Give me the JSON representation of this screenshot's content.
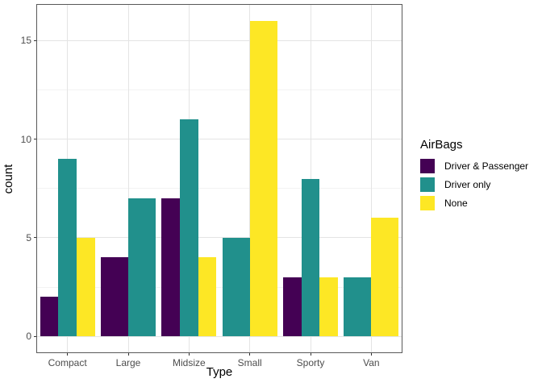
{
  "chart_data": {
    "type": "bar",
    "title": "",
    "xlabel": "Type",
    "ylabel": "count",
    "categories": [
      "Compact",
      "Large",
      "Midsize",
      "Small",
      "Sporty",
      "Van"
    ],
    "series": [
      {
        "name": "Driver & Passenger",
        "color": "#440154",
        "values": [
          2,
          4,
          7,
          null,
          3,
          null
        ]
      },
      {
        "name": "Driver only",
        "color": "#21908C",
        "values": [
          9,
          7,
          11,
          5,
          8,
          3
        ]
      },
      {
        "name": "None",
        "color": "#FDE725",
        "values": [
          5,
          null,
          4,
          16,
          3,
          6
        ]
      }
    ],
    "y_ticks": [
      0,
      5,
      10,
      15
    ],
    "y_minor_ticks": [
      2.5,
      7.5,
      12.5
    ],
    "ylim": [
      -0.8,
      16.8
    ],
    "bar_group_fill_fraction": 0.9,
    "grid": true,
    "legend": {
      "title": "AirBags",
      "position": "right"
    },
    "colors": {
      "background": "#ffffff",
      "panel_border": "#595959",
      "grid_major": "#e4e4e4",
      "grid_minor": "#f2f2f2",
      "tick_mark": "#333333",
      "axis_text": "#4d4d4d",
      "axis_title": "#000000"
    }
  }
}
